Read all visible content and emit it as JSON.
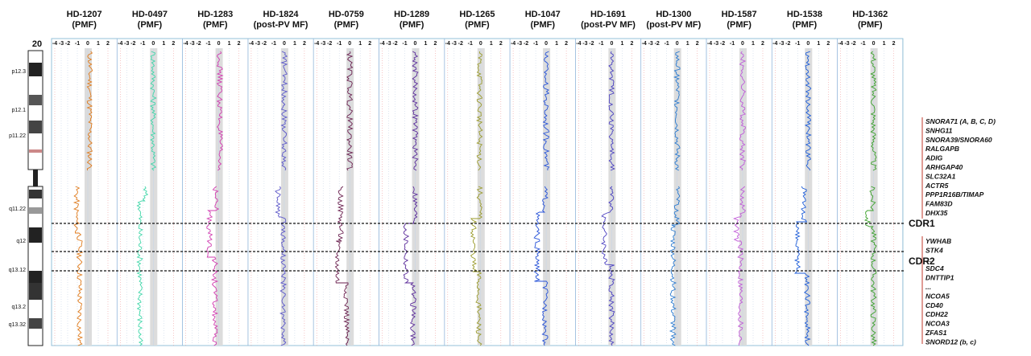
{
  "chromosome": "20",
  "bands": [
    "p12.3",
    "p12.1",
    "p11.22",
    "q11.22",
    "q12",
    "q13.12",
    "q13.2",
    "q13.32"
  ],
  "axis_ticks": [
    "-4",
    "-3",
    "-2",
    "-1",
    "0",
    "1",
    "2"
  ],
  "samples": [
    {
      "id": "HD-1207",
      "type": "(PMF)",
      "color": "#e07a1a"
    },
    {
      "id": "HD-0497",
      "type": "(PMF)",
      "color": "#3fd6a8"
    },
    {
      "id": "HD-1283",
      "type": "(PMF)",
      "color": "#d23bb0"
    },
    {
      "id": "HD-1824",
      "type": "(post-PV MF)",
      "color": "#5a55c8"
    },
    {
      "id": "HD-0759",
      "type": "(PMF)",
      "color": "#6a1f4e"
    },
    {
      "id": "HD-1289",
      "type": "(PMF)",
      "color": "#5b2a9a"
    },
    {
      "id": "HD-1265",
      "type": "(PMF)",
      "color": "#9a9a2a"
    },
    {
      "id": "HD-1047",
      "type": "(PMF)",
      "color": "#2450d8"
    },
    {
      "id": "HD-1691",
      "type": "(post-PV MF)",
      "color": "#4a3fc0"
    },
    {
      "id": "HD-1300",
      "type": "(post-PV MF)",
      "color": "#2a7ad0"
    },
    {
      "id": "HD-1587",
      "type": "(PMF)",
      "color": "#c05ad8"
    },
    {
      "id": "HD-1538",
      "type": "(PMF)",
      "color": "#1a5ad8"
    },
    {
      "id": "HD-1362",
      "type": "(PMF)",
      "color": "#3aa02a"
    }
  ],
  "regions": [
    {
      "label": "CDR1",
      "genes": [
        "SNORA71 (A, B, C, D)",
        "SNHG11",
        "SNORA39/SNORA60",
        "RALGAPB",
        "ADIG",
        "ARHGAP40",
        "SLC32A1",
        "ACTR5",
        "PPP1R16B/TIMAP",
        "FAM83D",
        "DHX35"
      ]
    },
    {
      "label": "CDR2",
      "genes": [
        "YWHAB",
        "STK4",
        "...",
        "SDC4",
        "DNTTIP1",
        "...",
        "NCOA5",
        "CD40",
        "CDH22",
        "NCOA3",
        "ZFAS1",
        "SNORD12 (b, c)"
      ]
    }
  ]
}
